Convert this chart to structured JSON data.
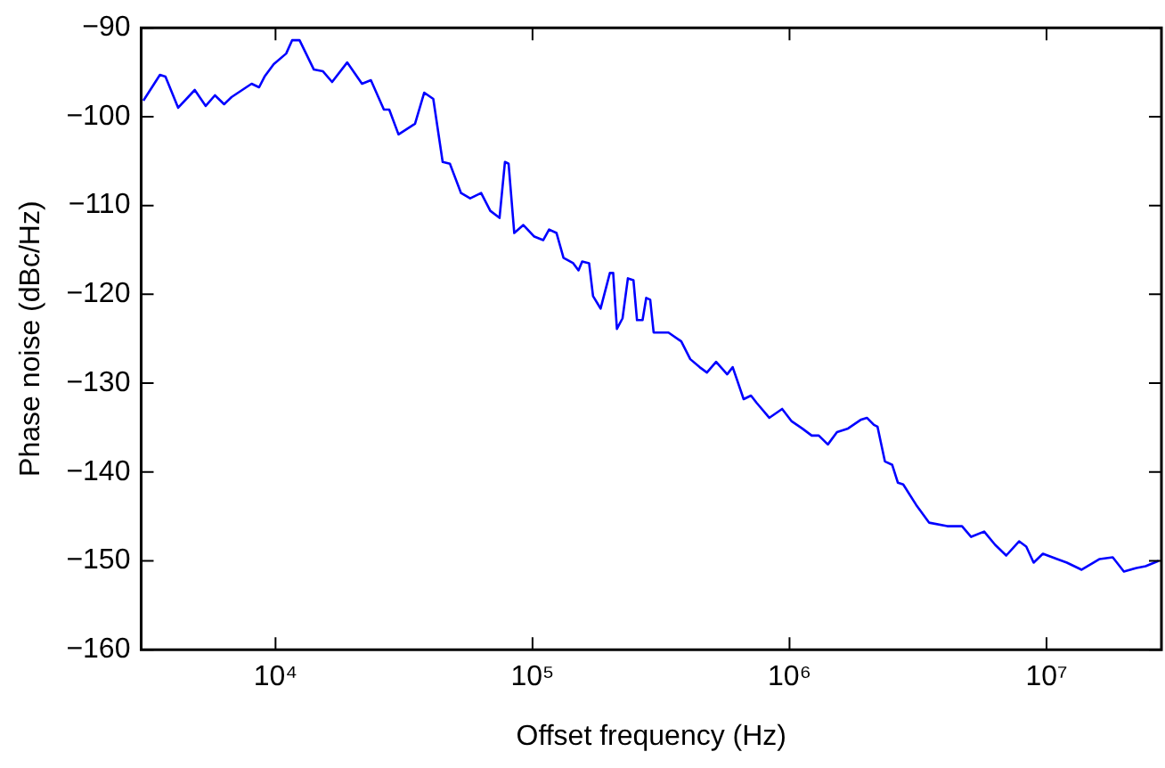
{
  "chart_data": {
    "type": "line",
    "xlabel": "Offset frequency (Hz)",
    "ylabel": "Phase noise (dBc/Hz)",
    "log": "x",
    "grid": false,
    "legend": false,
    "marker": "none",
    "line_style": "solid",
    "xlim": [
      3000,
      28000000
    ],
    "xticks": [
      {
        "value": 10000,
        "label": "10⁴"
      },
      {
        "value": 100000,
        "label": "10⁵"
      },
      {
        "value": 1000000,
        "label": "10⁶"
      },
      {
        "value": 10000000,
        "label": "10⁷"
      }
    ],
    "ylim": [
      -160,
      -90
    ],
    "yticks": [
      {
        "value": -160,
        "label": "−160"
      },
      {
        "value": -150,
        "label": "−150"
      },
      {
        "value": -140,
        "label": "−140"
      },
      {
        "value": -130,
        "label": "−130"
      },
      {
        "value": -120,
        "label": "−120"
      },
      {
        "value": -110,
        "label": "−110"
      },
      {
        "value": -100,
        "label": "−100"
      },
      {
        "value": -90,
        "label": "−90"
      }
    ],
    "series": [
      {
        "color": "#0000ff",
        "x": [
          3060,
          3550,
          3730,
          4180,
          4850,
          5350,
          5810,
          6310,
          6740,
          8070,
          8630,
          9060,
          9840,
          11000,
          11600,
          12400,
          14100,
          15300,
          16600,
          19000,
          21700,
          23500,
          26400,
          27700,
          30100,
          34900,
          37900,
          41100,
          44700,
          47700,
          52700,
          57200,
          63100,
          68500,
          74400,
          78100,
          80700,
          84900,
          92100,
          101600,
          110000,
          116000,
          124000,
          132000,
          144000,
          151000,
          156000,
          166000,
          172000,
          184000,
          200000,
          206000,
          213000,
          224000,
          235000,
          247000,
          255000,
          268000,
          277000,
          287000,
          296000,
          338000,
          379000,
          411000,
          447000,
          477000,
          518000,
          572000,
          601000,
          663000,
          708000,
          744000,
          834000,
          936000,
          1020000,
          1120000,
          1220000,
          1300000,
          1410000,
          1530000,
          1690000,
          1900000,
          2000000,
          2130000,
          2200000,
          2350000,
          2510000,
          2640000,
          2770000,
          3110000,
          3490000,
          4110000,
          4690000,
          5090000,
          5720000,
          6310000,
          6970000,
          7820000,
          8340000,
          8910000,
          9680000,
          11000000,
          12000000,
          13700000,
          16100000,
          18100000,
          20000000,
          22400000,
          24300000,
          27300000
        ],
        "values": [
          -98.2,
          -95.3,
          -95.5,
          -99,
          -97,
          -98.8,
          -97.6,
          -98.6,
          -97.8,
          -96.3,
          -96.7,
          -95.5,
          -94.1,
          -92.9,
          -91.4,
          -91.4,
          -94.7,
          -94.9,
          -96.1,
          -93.9,
          -96.3,
          -95.9,
          -99.2,
          -99.2,
          -102,
          -100.8,
          -97.3,
          -98,
          -105.1,
          -105.3,
          -108.6,
          -109.2,
          -108.6,
          -110.6,
          -111.4,
          -105.1,
          -105.3,
          -113.1,
          -112.2,
          -113.5,
          -113.9,
          -112.7,
          -113.1,
          -115.9,
          -116.5,
          -117.3,
          -116.3,
          -116.5,
          -120.2,
          -121.6,
          -117.6,
          -117.6,
          -123.9,
          -122.7,
          -118.2,
          -118.4,
          -122.9,
          -122.9,
          -120.4,
          -120.6,
          -124.3,
          -124.3,
          -125.3,
          -127.3,
          -128.2,
          -128.8,
          -127.6,
          -129,
          -128.2,
          -131.8,
          -131.4,
          -132.2,
          -133.9,
          -132.9,
          -134.3,
          -135.1,
          -135.9,
          -135.9,
          -136.9,
          -135.5,
          -135.1,
          -134.1,
          -133.9,
          -134.7,
          -134.9,
          -138.8,
          -139.2,
          -141.2,
          -141.4,
          -143.7,
          -145.7,
          -146.1,
          -146.1,
          -147.3,
          -146.7,
          -148.2,
          -149.4,
          -147.8,
          -148.4,
          -150.2,
          -149.2,
          -149.8,
          -150.2,
          -151,
          -149.8,
          -149.6,
          -151.2,
          -150.8,
          -150.6,
          -150
        ]
      }
    ]
  }
}
